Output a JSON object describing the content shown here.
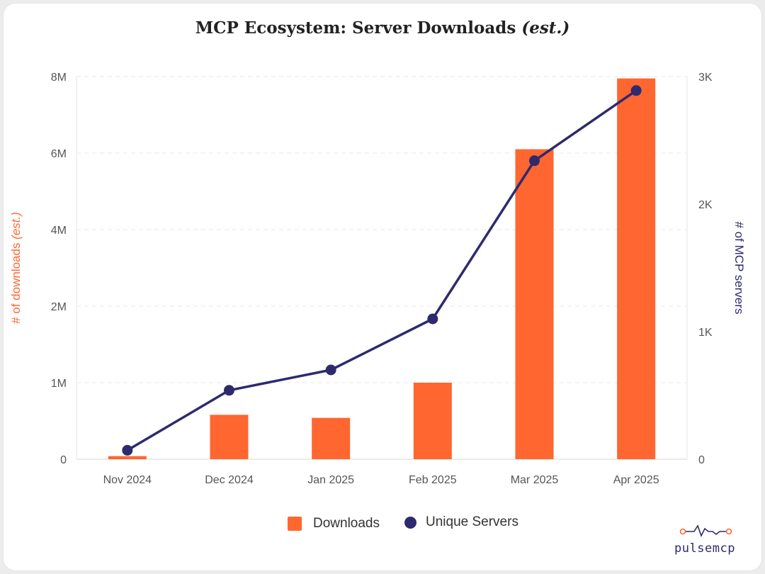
{
  "colors": {
    "downloads": "#ff6630",
    "servers": "#2e2a6e",
    "grid": "#e8e8e8"
  },
  "title_main": "MCP Ecosystem: Server Downloads",
  "title_suffix": "(est.)",
  "legend": {
    "downloads": "Downloads",
    "servers": "Unique Servers"
  },
  "logo": {
    "text": "pulsemcp",
    "icon": "pulse-wave-icon"
  },
  "chart_data": {
    "type": "bar",
    "title": "MCP Ecosystem: Server Downloads (est.)",
    "categories": [
      "Nov 2024",
      "Dec 2024",
      "Jan 2025",
      "Feb 2025",
      "Mar 2025",
      "Apr 2025"
    ],
    "ylabel_left": "# of downloads (est.)",
    "ylabel_left_parts": [
      "# of downloads ",
      "(est.)"
    ],
    "ylabel_right": "# of MCP servers",
    "left_axis": {
      "ticks": [
        {
          "label": "0",
          "value": 0
        },
        {
          "label": "1M",
          "value": 1000000
        },
        {
          "label": "2M",
          "value": 2000000
        },
        {
          "label": "4M",
          "value": 4000000
        },
        {
          "label": "6M",
          "value": 6000000
        },
        {
          "label": "8M",
          "value": 8000000
        }
      ]
    },
    "right_axis": {
      "ylim": [
        0,
        3000
      ],
      "ticks": [
        {
          "label": "0",
          "value": 0
        },
        {
          "label": "1K",
          "value": 1000
        },
        {
          "label": "2K",
          "value": 2000
        },
        {
          "label": "3K",
          "value": 3000
        }
      ]
    },
    "series": [
      {
        "name": "Downloads",
        "type": "bar",
        "axis": "left",
        "values": [
          40000,
          580000,
          540000,
          1000000,
          6100000,
          7950000
        ]
      },
      {
        "name": "Unique Servers",
        "type": "line",
        "axis": "right",
        "values": [
          70,
          540,
          700,
          1100,
          2340,
          2890
        ]
      }
    ],
    "legend_position": "bottom",
    "grid": true
  }
}
